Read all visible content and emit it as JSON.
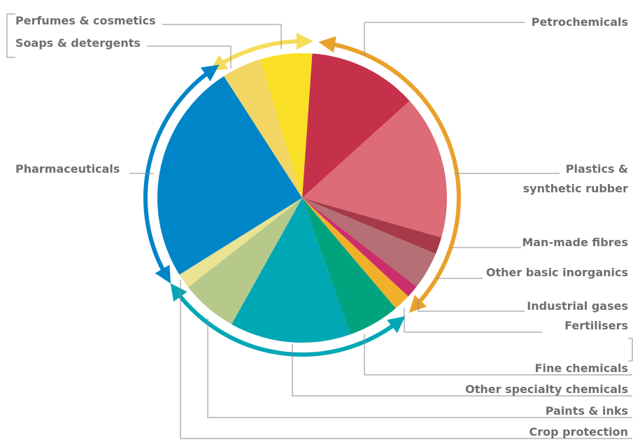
{
  "chart_data": {
    "type": "pie",
    "categories": [
      "Petrochemicals",
      "Plastics & synthetic rubber",
      "Man-made fibres",
      "Other basic inorganics",
      "Industrial gases",
      "Fertilisers",
      "Fine chemicals",
      "Other specialty chemicals",
      "Paints & inks",
      "Crop protection",
      "Pharmaceuticals",
      "Soaps & detergents",
      "Perfumes & cosmetics"
    ],
    "values": [
      12.2,
      16.1,
      1.9,
      4.2,
      1.4,
      1.9,
      5.8,
      13.5,
      6.3,
      1.7,
      24.8,
      4.4,
      5.8
    ],
    "colors": [
      "#c5304a",
      "#dd6b78",
      "#a63a48",
      "#b56f75",
      "#cc2e6b",
      "#f0b02a",
      "#00a37e",
      "#00a7b5",
      "#b6c98b",
      "#e9e393",
      "#0085c8",
      "#f3d564",
      "#f9e026"
    ]
  }
}
